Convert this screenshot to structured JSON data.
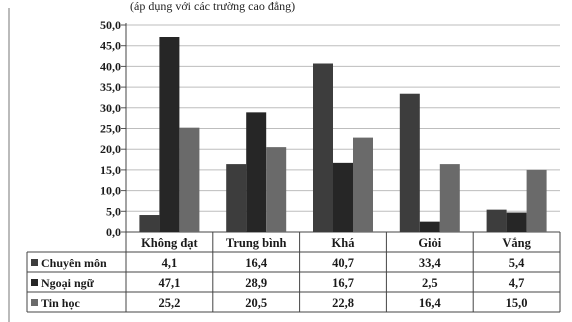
{
  "top_text": "(áp dụng với các trường cao đẳng)",
  "chart_data": {
    "type": "bar",
    "title": "",
    "xlabel": "",
    "ylabel": "",
    "ylim": [
      0,
      50
    ],
    "yticks": [
      "0,0",
      "5,0",
      "10,0",
      "15,0",
      "20,0",
      "25,0",
      "30,0",
      "35,0",
      "40,0",
      "45,0",
      "50,0"
    ],
    "grid": true,
    "legend": "data-table",
    "categories": [
      "Không đạt",
      "Trung bình",
      "Khá",
      "Giỏi",
      "Vắng"
    ],
    "series": [
      {
        "name": "Chuyên môn",
        "color": "#3d3d3d",
        "values": [
          4.1,
          16.4,
          40.7,
          33.4,
          5.4
        ],
        "labels": [
          "4,1",
          "16,4",
          "40,7",
          "33,4",
          "5,4"
        ]
      },
      {
        "name": "Ngoại ngữ",
        "color": "#262626",
        "values": [
          47.1,
          28.9,
          16.7,
          2.5,
          4.7
        ],
        "labels": [
          "47,1",
          "28,9",
          "16,7",
          "2,5",
          "4,7"
        ]
      },
      {
        "name": "Tin học",
        "color": "#6a6a6a",
        "values": [
          25.2,
          20.5,
          22.8,
          16.4,
          15.0
        ],
        "labels": [
          "25,2",
          "20,5",
          "22,8",
          "16,4",
          "15,0"
        ]
      }
    ]
  }
}
